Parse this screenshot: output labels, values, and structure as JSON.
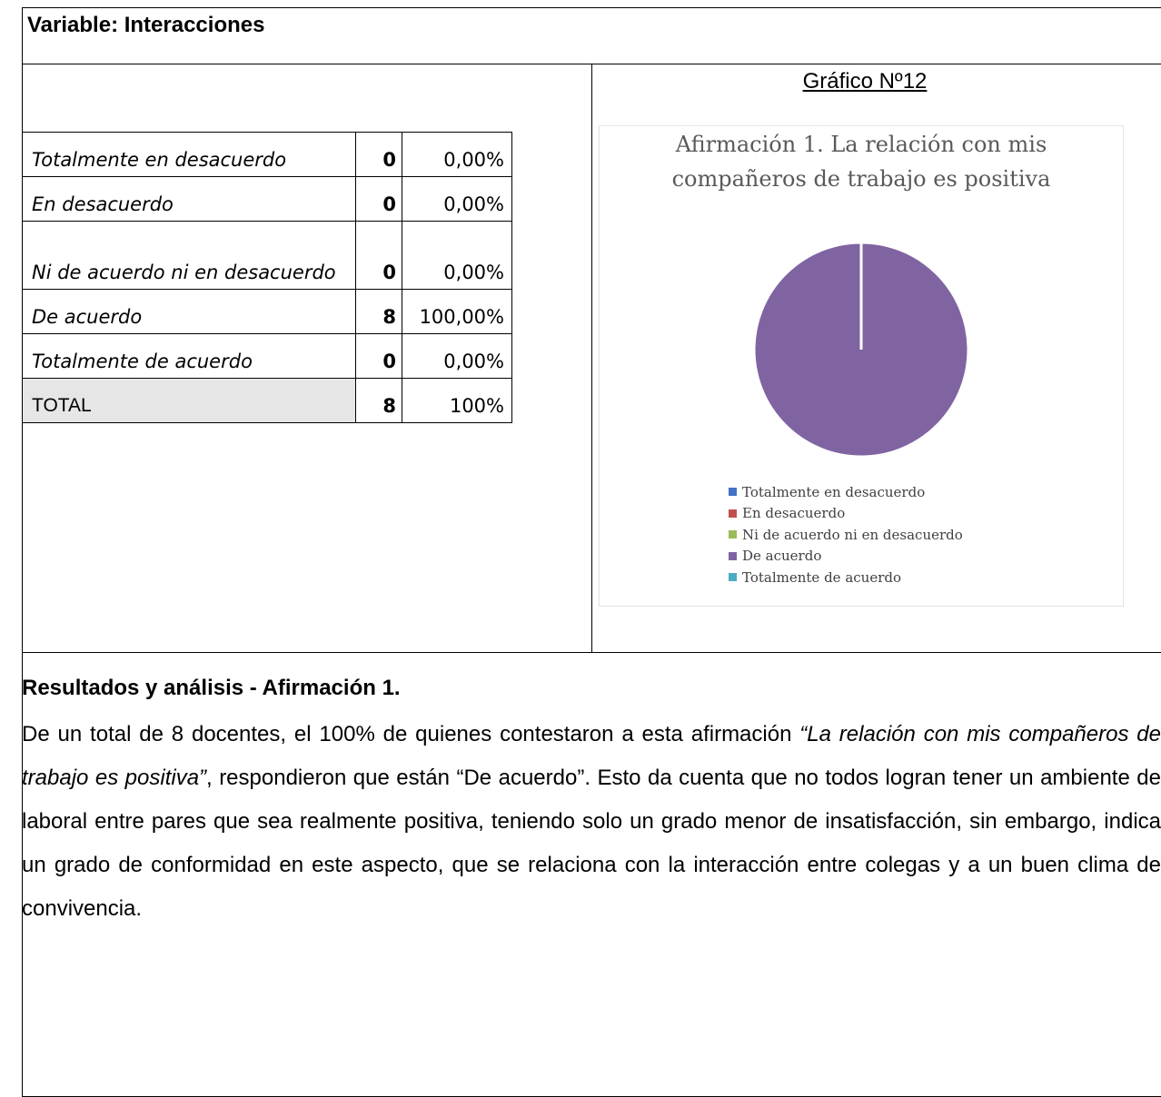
{
  "header": {
    "title": "Variable: Interacciones"
  },
  "table": {
    "rows": [
      [
        "Totalmente en desacuerdo",
        0,
        "0,00%"
      ],
      [
        "En desacuerdo",
        0,
        "0,00%"
      ],
      [
        "Ni de acuerdo ni en desacuerdo",
        0,
        "0,00%"
      ],
      [
        "De acuerdo",
        8,
        "100,00%"
      ],
      [
        "Totalmente de acuerdo",
        0,
        "0,00%"
      ],
      [
        "TOTAL",
        8,
        "100%"
      ]
    ]
  },
  "chart_caption": "Gráfico Nº12",
  "chart_data": {
    "type": "pie",
    "title": "Afirmación 1. La relación con mis compañeros de trabajo es positiva",
    "categories": [
      "Totalmente en desacuerdo",
      "En desacuerdo",
      "Ni de acuerdo ni en desacuerdo",
      "De acuerdo",
      "Totalmente de acuerdo"
    ],
    "values": [
      0,
      0,
      0,
      8,
      0
    ],
    "colors": [
      "#4472c4",
      "#c0504d",
      "#9bbb59",
      "#8064a2",
      "#4bacc6"
    ]
  },
  "analysis": {
    "heading": "Resultados y análisis - Afirmación 1.",
    "paragraph": [
      "De un total de 8 docentes, el 100% de quienes contestaron a esta afirmación ",
      "“La relación con mis compañeros de trabajo es positiva”",
      ", respondieron que están “De acuerdo”. Esto da cuenta que no todos logran tener un ambiente de laboral entre pares que sea realmente positiva, teniendo solo un grado menor de insatisfacción, sin embargo, indica un grado de conformidad en este aspecto, que se relaciona con la interacción entre colegas y a un buen clima de convivencia."
    ]
  }
}
